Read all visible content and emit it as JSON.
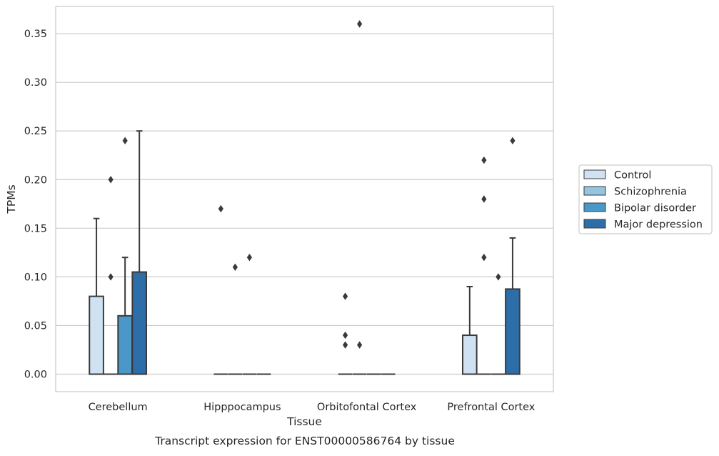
{
  "chart_data": {
    "type": "box",
    "title": "",
    "caption": "Transcript expression for ENST00000586764 by tissue",
    "xlabel": "Tissue",
    "ylabel": "TPMs",
    "ylim": [
      -0.018,
      0.378
    ],
    "yticks": [
      "0.00",
      "0.05",
      "0.10",
      "0.15",
      "0.20",
      "0.25",
      "0.30",
      "0.35"
    ],
    "grid": "horizontal",
    "legend_position": "right",
    "categories": [
      "Cerebellum",
      "Hipppocampus",
      "Orbitofontal Cortex",
      "Prefrontal Cortex"
    ],
    "series": [
      {
        "name": "Control",
        "color": "#d0e1f2",
        "boxes": [
          {
            "q1": 0,
            "median": 0,
            "q3": 0.08,
            "whisker_low": 0,
            "whisker_high": 0.16,
            "outliers": []
          },
          {
            "q1": 0,
            "median": 0,
            "q3": 0,
            "whisker_low": 0,
            "whisker_high": 0,
            "outliers": [
              0.17
            ]
          },
          {
            "q1": 0,
            "median": 0,
            "q3": 0,
            "whisker_low": 0,
            "whisker_high": 0,
            "outliers": [
              0.08,
              0.04,
              0.03
            ]
          },
          {
            "q1": 0,
            "median": 0,
            "q3": 0.04,
            "whisker_low": 0,
            "whisker_high": 0.09,
            "outliers": []
          }
        ]
      },
      {
        "name": "Schizophrenia",
        "color": "#94c4df",
        "boxes": [
          {
            "q1": 0,
            "median": 0,
            "q3": 0,
            "whisker_low": 0,
            "whisker_high": 0,
            "outliers": [
              0.2,
              0.1
            ]
          },
          {
            "q1": 0,
            "median": 0,
            "q3": 0,
            "whisker_low": 0,
            "whisker_high": 0,
            "outliers": [
              0.11
            ]
          },
          {
            "q1": 0,
            "median": 0,
            "q3": 0,
            "whisker_low": 0,
            "whisker_high": 0,
            "outliers": [
              0.36,
              0.03
            ]
          },
          {
            "q1": 0,
            "median": 0,
            "q3": 0,
            "whisker_low": 0,
            "whisker_high": 0,
            "outliers": [
              0.18,
              0.12,
              0.22
            ]
          }
        ]
      },
      {
        "name": "Bipolar disorder",
        "color": "#4a98c9",
        "boxes": [
          {
            "q1": 0,
            "median": 0,
            "q3": 0.06,
            "whisker_low": 0,
            "whisker_high": 0.12,
            "outliers": [
              0.24
            ]
          },
          {
            "q1": 0,
            "median": 0,
            "q3": 0,
            "whisker_low": 0,
            "whisker_high": 0,
            "outliers": [
              0.12
            ]
          },
          {
            "q1": 0,
            "median": 0,
            "q3": 0,
            "whisker_low": 0,
            "whisker_high": 0,
            "outliers": []
          },
          {
            "q1": 0,
            "median": 0,
            "q3": 0,
            "whisker_low": 0,
            "whisker_high": 0,
            "outliers": [
              0.1
            ]
          }
        ]
      },
      {
        "name": "Major depression",
        "color": "#2e6ea8",
        "boxes": [
          {
            "q1": 0,
            "median": 0,
            "q3": 0.105,
            "whisker_low": 0,
            "whisker_high": 0.25,
            "outliers": []
          },
          {
            "q1": 0,
            "median": 0,
            "q3": 0,
            "whisker_low": 0,
            "whisker_high": 0,
            "outliers": []
          },
          {
            "q1": 0,
            "median": 0,
            "q3": 0,
            "whisker_low": 0,
            "whisker_high": 0,
            "outliers": []
          },
          {
            "q1": 0,
            "median": 0,
            "q3": 0.0875,
            "whisker_low": 0,
            "whisker_high": 0.14,
            "outliers": [
              0.24
            ]
          }
        ]
      }
    ]
  }
}
